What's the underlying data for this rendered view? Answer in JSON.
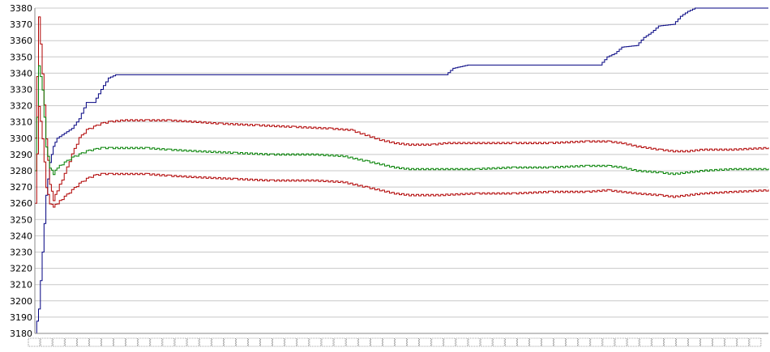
{
  "chart_data": {
    "type": "line",
    "title": "",
    "xlabel": "",
    "ylabel": "",
    "ylim": [
      3180,
      3380
    ],
    "yticks": [
      3180,
      3190,
      3200,
      3210,
      3220,
      3230,
      3240,
      3250,
      3260,
      3270,
      3280,
      3290,
      3300,
      3310,
      3320,
      3330,
      3340,
      3350,
      3360,
      3370,
      3380
    ],
    "grid": true,
    "legend": "none",
    "x_tick_labels_note": "x tick labels are overprinted and illegible",
    "x_count": 100,
    "series": [
      {
        "color": "#000080",
        "points": [
          [
            0,
            3180
          ],
          [
            0.5,
            3195
          ],
          [
            1,
            3230
          ],
          [
            1.5,
            3265
          ],
          [
            2,
            3285
          ],
          [
            2.5,
            3295
          ],
          [
            3,
            3300
          ],
          [
            4,
            3303
          ],
          [
            5,
            3306
          ],
          [
            6,
            3312
          ],
          [
            7,
            3322
          ],
          [
            8,
            3322
          ],
          [
            9,
            3330
          ],
          [
            10,
            3337
          ],
          [
            11,
            3339
          ],
          [
            20,
            3339
          ],
          [
            40,
            3339
          ],
          [
            56,
            3339
          ],
          [
            57,
            3343
          ],
          [
            58,
            3344
          ],
          [
            59,
            3345
          ],
          [
            77,
            3345
          ],
          [
            78,
            3350
          ],
          [
            79,
            3352
          ],
          [
            80,
            3356
          ],
          [
            82,
            3357
          ],
          [
            83,
            3362
          ],
          [
            84,
            3365
          ],
          [
            85,
            3369
          ],
          [
            87,
            3370
          ],
          [
            88,
            3375
          ],
          [
            89,
            3378
          ],
          [
            90,
            3380
          ],
          [
            100,
            3380
          ]
        ]
      },
      {
        "color": "#b00000",
        "points": [
          [
            0,
            3300
          ],
          [
            0.5,
            3375
          ],
          [
            1,
            3340
          ],
          [
            1.5,
            3300
          ],
          [
            2,
            3272
          ],
          [
            2.5,
            3262
          ],
          [
            3,
            3268
          ],
          [
            4,
            3278
          ],
          [
            5,
            3290
          ],
          [
            6,
            3300
          ],
          [
            7,
            3305
          ],
          [
            8,
            3307
          ],
          [
            9,
            3309
          ],
          [
            10,
            3310
          ],
          [
            12,
            3311
          ],
          [
            15,
            3311
          ],
          [
            18,
            3311
          ],
          [
            22,
            3310
          ],
          [
            25,
            3309
          ],
          [
            30,
            3308
          ],
          [
            35,
            3307
          ],
          [
            40,
            3306
          ],
          [
            43,
            3305
          ],
          [
            45,
            3302
          ],
          [
            47,
            3299
          ],
          [
            49,
            3297
          ],
          [
            51,
            3296
          ],
          [
            54,
            3296
          ],
          [
            56,
            3297
          ],
          [
            60,
            3297
          ],
          [
            65,
            3297
          ],
          [
            70,
            3297
          ],
          [
            75,
            3298
          ],
          [
            78,
            3298
          ],
          [
            80,
            3297
          ],
          [
            82,
            3295
          ],
          [
            85,
            3293
          ],
          [
            87,
            3292
          ],
          [
            89,
            3292
          ],
          [
            91,
            3293
          ],
          [
            95,
            3293
          ],
          [
            100,
            3294
          ]
        ]
      },
      {
        "color": "#008000",
        "points": [
          [
            0,
            3280
          ],
          [
            0.5,
            3345
          ],
          [
            1,
            3330
          ],
          [
            1.5,
            3295
          ],
          [
            2,
            3282
          ],
          [
            2.5,
            3278
          ],
          [
            3,
            3282
          ],
          [
            4,
            3285
          ],
          [
            5,
            3288
          ],
          [
            6,
            3290
          ],
          [
            7,
            3292
          ],
          [
            8,
            3293
          ],
          [
            9,
            3294
          ],
          [
            10,
            3294
          ],
          [
            15,
            3294
          ],
          [
            18,
            3293
          ],
          [
            22,
            3292
          ],
          [
            27,
            3291
          ],
          [
            32,
            3290
          ],
          [
            38,
            3290
          ],
          [
            42,
            3289
          ],
          [
            45,
            3286
          ],
          [
            47,
            3284
          ],
          [
            49,
            3282
          ],
          [
            51,
            3281
          ],
          [
            55,
            3281
          ],
          [
            60,
            3281
          ],
          [
            65,
            3282
          ],
          [
            70,
            3282
          ],
          [
            75,
            3283
          ],
          [
            78,
            3283
          ],
          [
            80,
            3282
          ],
          [
            82,
            3280
          ],
          [
            85,
            3279
          ],
          [
            87,
            3278
          ],
          [
            89,
            3279
          ],
          [
            91,
            3280
          ],
          [
            95,
            3281
          ],
          [
            100,
            3281
          ]
        ]
      },
      {
        "color": "#b00000",
        "points": [
          [
            0,
            3260
          ],
          [
            0.5,
            3320
          ],
          [
            1,
            3300
          ],
          [
            1.5,
            3270
          ],
          [
            2,
            3260
          ],
          [
            2.5,
            3258
          ],
          [
            3,
            3260
          ],
          [
            4,
            3264
          ],
          [
            5,
            3268
          ],
          [
            6,
            3272
          ],
          [
            7,
            3275
          ],
          [
            8,
            3277
          ],
          [
            9,
            3278
          ],
          [
            10,
            3278
          ],
          [
            15,
            3278
          ],
          [
            18,
            3277
          ],
          [
            22,
            3276
          ],
          [
            27,
            3275
          ],
          [
            32,
            3274
          ],
          [
            38,
            3274
          ],
          [
            42,
            3273
          ],
          [
            45,
            3270
          ],
          [
            47,
            3268
          ],
          [
            49,
            3266
          ],
          [
            51,
            3265
          ],
          [
            55,
            3265
          ],
          [
            60,
            3266
          ],
          [
            65,
            3266
          ],
          [
            70,
            3267
          ],
          [
            75,
            3267
          ],
          [
            78,
            3268
          ],
          [
            80,
            3267
          ],
          [
            82,
            3266
          ],
          [
            85,
            3265
          ],
          [
            87,
            3264
          ],
          [
            89,
            3265
          ],
          [
            91,
            3266
          ],
          [
            95,
            3267
          ],
          [
            100,
            3268
          ]
        ]
      }
    ]
  }
}
